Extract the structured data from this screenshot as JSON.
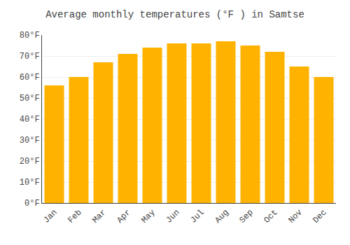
{
  "chart_data": {
    "type": "bar",
    "title": "Average monthly temperatures (°F ) in Samtse",
    "categories": [
      "Jan",
      "Feb",
      "Mar",
      "Apr",
      "May",
      "Jun",
      "Jul",
      "Aug",
      "Sep",
      "Oct",
      "Nov",
      "Dec"
    ],
    "values": [
      56,
      60,
      67,
      71,
      74,
      76,
      76,
      77,
      75,
      72,
      65,
      60
    ],
    "color": "#FFB300",
    "ylim": [
      0,
      80
    ],
    "yticks": [
      {
        "value": 0,
        "label": "0°F"
      },
      {
        "value": 10,
        "label": "10°F"
      },
      {
        "value": 20,
        "label": "20°F"
      },
      {
        "value": 30,
        "label": "30°F"
      },
      {
        "value": 40,
        "label": "40°F"
      },
      {
        "value": 50,
        "label": "50°F"
      },
      {
        "value": 60,
        "label": "60°F"
      },
      {
        "value": 70,
        "label": "70°F"
      },
      {
        "value": 80,
        "label": "80°F"
      }
    ],
    "grid": true
  }
}
